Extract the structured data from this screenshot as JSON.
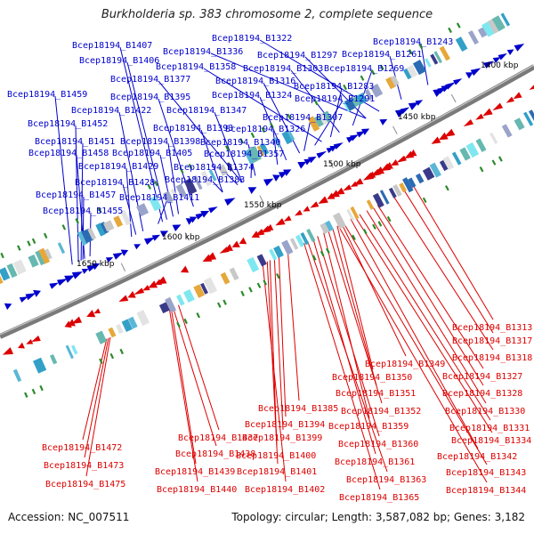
{
  "title": "Burkholderia sp. 383 chromosome 2, complete sequence",
  "footer": {
    "accession": "Accession: NC_007511",
    "summary": "Topology: circular; Length: 3,587,082 bp; Genes: 3,182"
  },
  "ticks": [
    "1400 kbp",
    "1450 kbp",
    "1500 kbp",
    "1550 kbp",
    "1600 kbp",
    "1650 kbp"
  ],
  "colors": {
    "forward": "#0000cc",
    "reverse": "#dd0000",
    "backbone": "#666666"
  },
  "labels_blue": [
    "Bcep18194_B1243",
    "Bcep18194_B1322",
    "Bcep18194_B1407",
    "Bcep18194_B1336",
    "Bcep18194_B1297",
    "Bcep18194_B1261",
    "Bcep18194_B1406",
    "Bcep18194_B1358",
    "Bcep18194_B1303",
    "Bcep18194_B1269",
    "Bcep18194_B1377",
    "Bcep18194_B1316",
    "Bcep18194_B1283",
    "Bcep18194_B1459",
    "Bcep18194_B1395",
    "Bcep18194_B1324",
    "Bcep18194_B1291",
    "Bcep18194_B1422",
    "Bcep18194_B1347",
    "Bcep18194_B1452",
    "Bcep18194_B1393",
    "Bcep18194_B1307",
    "Bcep18194_B1326",
    "Bcep18194_B1451",
    "Bcep18194_B1398",
    "Bcep18194_B1340",
    "Bcep18194_B1458",
    "Bcep18194_B1405",
    "Bcep18194_B1357",
    "Bcep18194_B1429",
    "Bcep18194_B1374",
    "Bcep18194_B1428",
    "Bcep18194_B1383",
    "Bcep18194_B1457",
    "Bcep18194_B1411",
    "Bcep18194_B1455"
  ],
  "labels_red": [
    "Bcep18194_B1313",
    "Bcep18194_B1317",
    "Bcep18194_B1318",
    "Bcep18194_B1349",
    "Bcep18194_B1327",
    "Bcep18194_B1350",
    "Bcep18194_B1328",
    "Bcep18194_B1351",
    "Bcep18194_B1385",
    "Bcep18194_B1352",
    "Bcep18194_B1330",
    "Bcep18194_B1394",
    "Bcep18194_B1359",
    "Bcep18194_B1331",
    "Bcep18194_B1399",
    "Bcep18194_B1437",
    "Bcep18194_B1334",
    "Bcep18194_B1360",
    "Bcep18194_B1472",
    "Bcep18194_B1438",
    "Bcep18194_B1400",
    "Bcep18194_B1342",
    "Bcep18194_B1361",
    "Bcep18194_B1473",
    "Bcep18194_B1439",
    "Bcep18194_B1401",
    "Bcep18194_B1343",
    "Bcep18194_B1363",
    "Bcep18194_B1475",
    "Bcep18194_B1440",
    "Bcep18194_B1402",
    "Bcep18194_B1344",
    "Bcep18194_B1365"
  ]
}
